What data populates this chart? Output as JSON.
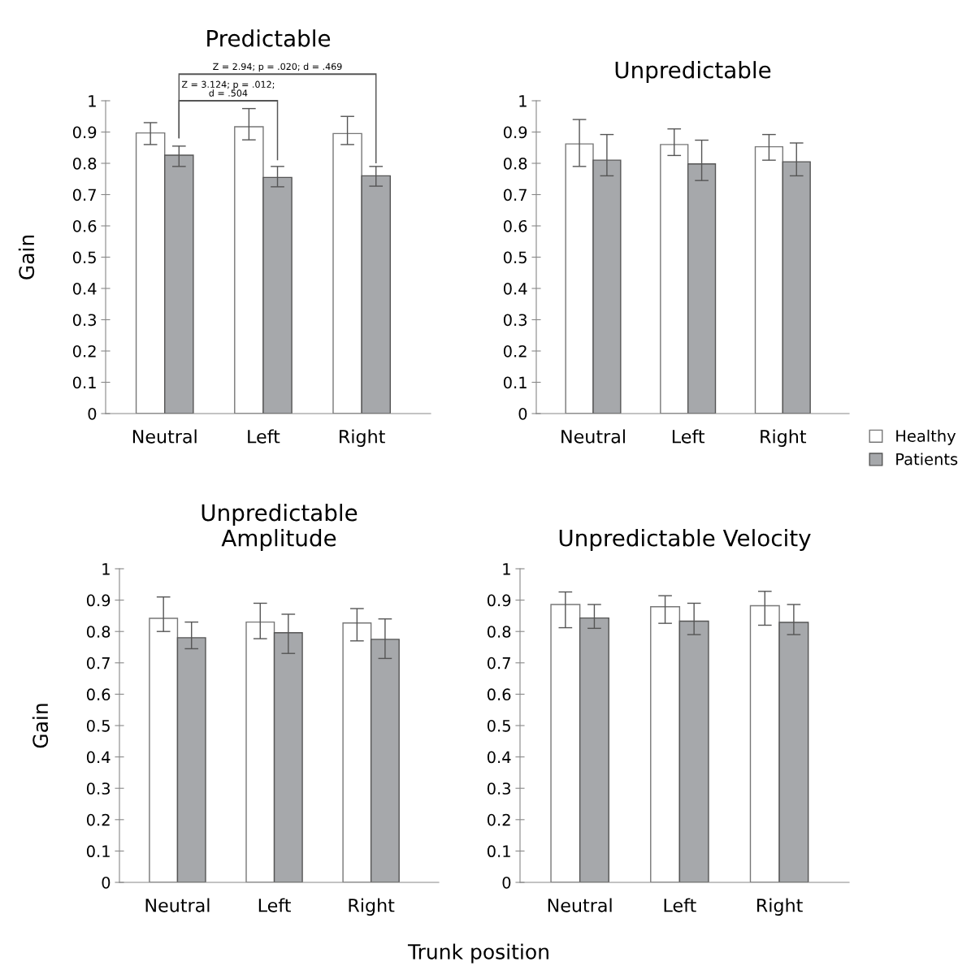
{
  "chart_data": [
    {
      "type": "bar",
      "title": "Predictable",
      "ylabel": "Gain",
      "categories": [
        "Neutral",
        "Left",
        "Right"
      ],
      "ylim": [
        0,
        1
      ],
      "yticks": [
        0,
        0.1,
        0.2,
        0.3,
        0.4,
        0.5,
        0.6,
        0.7,
        0.8,
        0.9,
        1
      ],
      "grid": false,
      "series": [
        {
          "color": "#ffffff",
          "values": [
            0.897,
            0.917,
            0.895
          ],
          "errors": [
            [
              0.86,
              0.93
            ],
            [
              0.875,
              0.975
            ],
            [
              0.86,
              0.95
            ]
          ]
        },
        {
          "color": "#a6a8ab",
          "values": [
            0.826,
            0.755,
            0.76
          ],
          "errors": [
            [
              0.79,
              0.855
            ],
            [
              0.725,
              0.79
            ],
            [
              0.727,
              0.79
            ]
          ]
        }
      ],
      "annotations": [
        "Z = 2.94; p = .020; d = .469",
        "Z = 3.124; p = .012;\nd = .504"
      ]
    },
    {
      "type": "bar",
      "title": "Unpredictable",
      "categories": [
        "Neutral",
        "Left",
        "Right"
      ],
      "ylim": [
        0,
        1
      ],
      "yticks": [
        0,
        0.1,
        0.2,
        0.3,
        0.4,
        0.5,
        0.6,
        0.7,
        0.8,
        0.9,
        1
      ],
      "grid": false,
      "legend": "bottom right",
      "series": [
        {
          "name": "Healthy",
          "color": "#ffffff",
          "values": [
            0.862,
            0.86,
            0.853
          ],
          "errors": [
            [
              0.79,
              0.94
            ],
            [
              0.825,
              0.91
            ],
            [
              0.81,
              0.892
            ]
          ]
        },
        {
          "name": "Patients",
          "color": "#a6a8ab",
          "values": [
            0.81,
            0.798,
            0.805
          ],
          "errors": [
            [
              0.76,
              0.892
            ],
            [
              0.745,
              0.874
            ],
            [
              0.76,
              0.865
            ]
          ]
        }
      ]
    },
    {
      "type": "bar",
      "title": "Unpredictable\nAmplitude",
      "ylabel": "Gain",
      "xlabel": "Trunk position",
      "categories": [
        "Neutral",
        "Left",
        "Right"
      ],
      "ylim": [
        0,
        1
      ],
      "yticks": [
        0,
        0.1,
        0.2,
        0.3,
        0.4,
        0.5,
        0.6,
        0.7,
        0.8,
        0.9,
        1
      ],
      "grid": false,
      "series": [
        {
          "color": "#ffffff",
          "values": [
            0.842,
            0.83,
            0.827
          ],
          "errors": [
            [
              0.8,
              0.91
            ],
            [
              0.777,
              0.89
            ],
            [
              0.77,
              0.873
            ]
          ]
        },
        {
          "color": "#a6a8ab",
          "values": [
            0.78,
            0.796,
            0.775
          ],
          "errors": [
            [
              0.745,
              0.83
            ],
            [
              0.73,
              0.855
            ],
            [
              0.714,
              0.84
            ]
          ]
        }
      ]
    },
    {
      "type": "bar",
      "title": "Unpredictable Velocity",
      "categories": [
        "Neutral",
        "Left",
        "Right"
      ],
      "ylim": [
        0,
        1
      ],
      "yticks": [
        0,
        0.1,
        0.2,
        0.3,
        0.4,
        0.5,
        0.6,
        0.7,
        0.8,
        0.9,
        1
      ],
      "grid": false,
      "series": [
        {
          "color": "#ffffff",
          "values": [
            0.886,
            0.879,
            0.882
          ],
          "errors": [
            [
              0.812,
              0.926
            ],
            [
              0.826,
              0.914
            ],
            [
              0.82,
              0.928
            ]
          ]
        },
        {
          "color": "#a6a8ab",
          "values": [
            0.843,
            0.833,
            0.829
          ],
          "errors": [
            [
              0.81,
              0.886
            ],
            [
              0.79,
              0.89
            ],
            [
              0.79,
              0.886
            ]
          ]
        }
      ]
    }
  ]
}
